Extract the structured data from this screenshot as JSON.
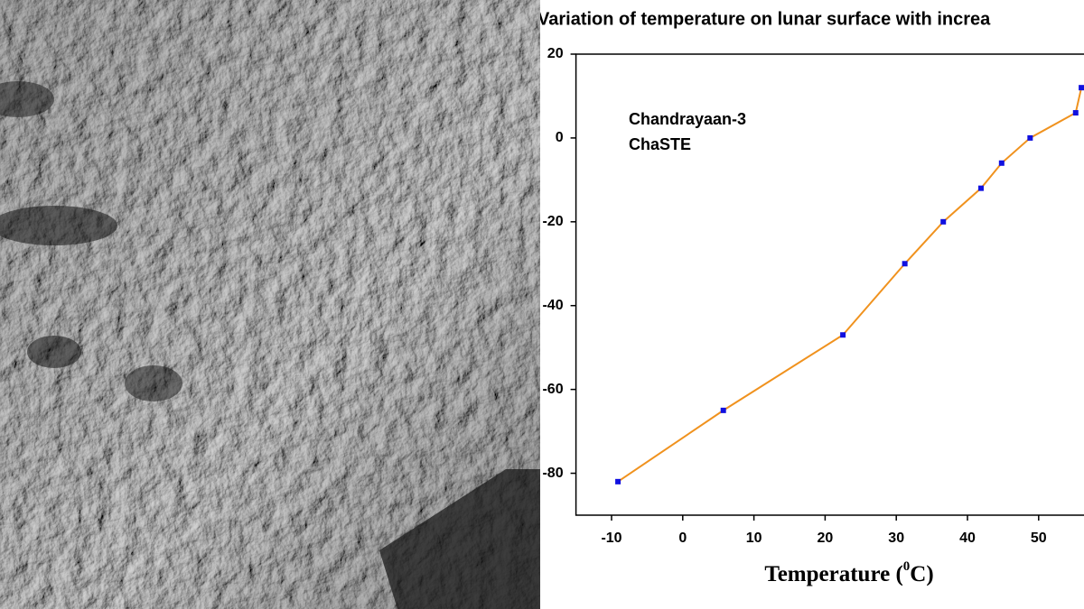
{
  "chart_data": {
    "type": "line",
    "title": "Variation of temperature on lunar surface with increa",
    "annotations": [
      "Chandrayaan-3",
      "ChaSTE"
    ],
    "x_label": "Temperature (",
    "x_label_sup": "0",
    "x_label_end": "C)",
    "x": [
      -9.1,
      5.7,
      22.5,
      31.2,
      36.6,
      41.9,
      44.8,
      48.8,
      55.2,
      56
    ],
    "series": [
      {
        "color": "#f0921e",
        "marker_color": "#1010e0",
        "values": [
          -82,
          -65,
          -47,
          -30,
          -20,
          -12,
          -6,
          0,
          6,
          12
        ]
      }
    ],
    "xlim": [
      -15,
      60
    ],
    "xticks": [
      -10,
      0,
      10,
      20,
      30,
      40,
      50
    ],
    "ylim": [
      -90,
      20
    ],
    "yticks": [
      20,
      0,
      -20,
      -40,
      -60,
      -80
    ]
  }
}
